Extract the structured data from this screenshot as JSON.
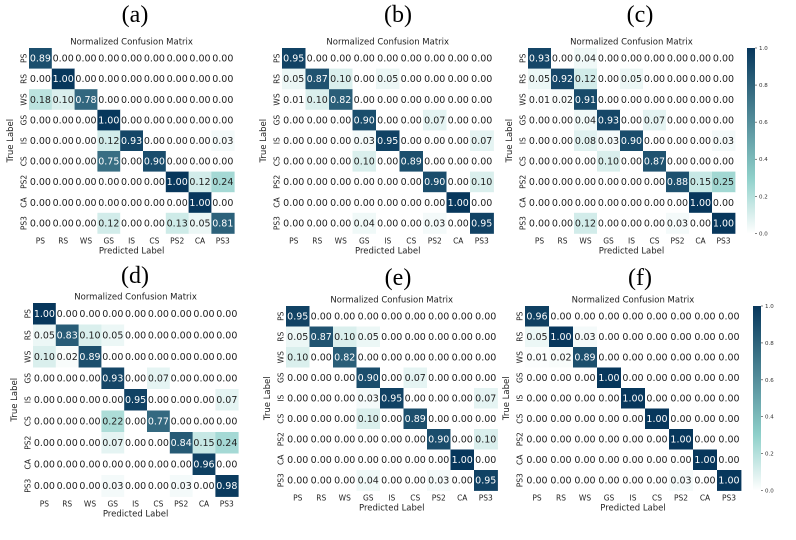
{
  "figure": {
    "panel_labels": [
      "(a)",
      "(b)",
      "(c)",
      "(d)",
      "(e)",
      "(f)"
    ]
  },
  "colorscale": {
    "low": "#ffffff",
    "mid": "#8fd0ca",
    "high": "#07375c",
    "text_dark": "#222222",
    "text_light": "#ffffff",
    "ticks": [
      "0.0",
      "0.2",
      "0.4",
      "0.6",
      "0.8",
      "1.0"
    ],
    "tick_values": [
      0.0,
      0.2,
      0.4,
      0.6,
      0.8,
      1.0
    ]
  },
  "chart_data": [
    {
      "type": "heatmap",
      "panel": "(a)",
      "title": "Normalized Confusion Matrix",
      "xlabel": "Predicted Label",
      "ylabel": "True Label",
      "x_categories": [
        "PS",
        "RS",
        "WS",
        "GS",
        "IS",
        "CS",
        "PS2",
        "CA",
        "PS3"
      ],
      "y_categories": [
        "PS",
        "RS",
        "WS",
        "GS",
        "IS",
        "CS",
        "PS2",
        "CA",
        "PS3"
      ],
      "colorbar": false,
      "matrix": [
        [
          0.89,
          0.0,
          0.0,
          0.0,
          0.0,
          0.0,
          0.0,
          0.0,
          0.0
        ],
        [
          0.0,
          1.0,
          0.0,
          0.0,
          0.0,
          0.0,
          0.0,
          0.0,
          0.0
        ],
        [
          0.18,
          0.1,
          0.78,
          0.0,
          0.0,
          0.0,
          0.0,
          0.0,
          0.0
        ],
        [
          0.0,
          0.0,
          0.0,
          1.0,
          0.0,
          0.0,
          0.0,
          0.0,
          0.0
        ],
        [
          0.0,
          0.0,
          0.0,
          0.12,
          0.93,
          0.0,
          0.0,
          0.0,
          0.03
        ],
        [
          0.0,
          0.0,
          0.0,
          0.75,
          0.0,
          0.9,
          0.0,
          0.0,
          0.0
        ],
        [
          0.0,
          0.0,
          0.0,
          0.0,
          0.0,
          0.0,
          1.0,
          0.12,
          0.24
        ],
        [
          0.0,
          0.0,
          0.0,
          0.0,
          0.0,
          0.0,
          0.0,
          1.0,
          0.0
        ],
        [
          0.0,
          0.0,
          0.0,
          0.12,
          0.0,
          0.0,
          0.13,
          0.05,
          0.81
        ]
      ]
    },
    {
      "type": "heatmap",
      "panel": "(b)",
      "title": "Normalized Confusion Matrix",
      "xlabel": "Predicted Label",
      "ylabel": "True Label",
      "x_categories": [
        "PS",
        "RS",
        "WS",
        "GS",
        "IS",
        "CS",
        "PS2",
        "CA",
        "PS3"
      ],
      "y_categories": [
        "PS",
        "RS",
        "WS",
        "GS",
        "IS",
        "CS",
        "PS2",
        "CA",
        "PS3"
      ],
      "colorbar": false,
      "matrix": [
        [
          0.95,
          0.0,
          0.0,
          0.0,
          0.0,
          0.0,
          0.0,
          0.0,
          0.0
        ],
        [
          0.05,
          0.87,
          0.1,
          0.0,
          0.05,
          0.0,
          0.0,
          0.0,
          0.0
        ],
        [
          0.01,
          0.1,
          0.82,
          0.0,
          0.0,
          0.0,
          0.0,
          0.0,
          0.0
        ],
        [
          0.0,
          0.0,
          0.0,
          0.9,
          0.0,
          0.0,
          0.07,
          0.0,
          0.0
        ],
        [
          0.0,
          0.0,
          0.0,
          0.03,
          0.95,
          0.0,
          0.0,
          0.0,
          0.07
        ],
        [
          0.0,
          0.0,
          0.0,
          0.1,
          0.0,
          0.89,
          0.0,
          0.0,
          0.0
        ],
        [
          0.0,
          0.0,
          0.0,
          0.0,
          0.0,
          0.0,
          0.9,
          0.0,
          0.1
        ],
        [
          0.0,
          0.0,
          0.0,
          0.0,
          0.0,
          0.0,
          0.0,
          1.0,
          0.0
        ],
        [
          0.0,
          0.0,
          0.0,
          0.04,
          0.0,
          0.0,
          0.03,
          0.0,
          0.95
        ]
      ]
    },
    {
      "type": "heatmap",
      "panel": "(c)",
      "title": "Normalized Confusion Matrix",
      "xlabel": "Predicted Label",
      "ylabel": "True Label",
      "x_categories": [
        "PS",
        "RS",
        "WS",
        "GS",
        "IS",
        "CS",
        "PS2",
        "CA",
        "PS3"
      ],
      "y_categories": [
        "PS",
        "RS",
        "WS",
        "GS",
        "IS",
        "CS",
        "PS2",
        "CA",
        "PS3"
      ],
      "colorbar": true,
      "matrix": [
        [
          0.93,
          0.0,
          0.04,
          0.0,
          0.0,
          0.0,
          0.0,
          0.0,
          0.0
        ],
        [
          0.05,
          0.92,
          0.12,
          0.0,
          0.05,
          0.0,
          0.0,
          0.0,
          0.0
        ],
        [
          0.01,
          0.02,
          0.91,
          0.0,
          0.0,
          0.0,
          0.0,
          0.0,
          0.0
        ],
        [
          0.0,
          0.0,
          0.04,
          0.93,
          0.0,
          0.07,
          0.0,
          0.0,
          0.0
        ],
        [
          0.0,
          0.0,
          0.08,
          0.03,
          0.9,
          0.0,
          0.0,
          0.0,
          0.03
        ],
        [
          0.0,
          0.0,
          0.0,
          0.1,
          0.0,
          0.87,
          0.0,
          0.0,
          0.0
        ],
        [
          0.0,
          0.0,
          0.0,
          0.0,
          0.0,
          0.0,
          0.88,
          0.15,
          0.25
        ],
        [
          0.0,
          0.0,
          0.0,
          0.0,
          0.0,
          0.0,
          0.0,
          1.0,
          0.0
        ],
        [
          0.0,
          0.0,
          0.12,
          0.0,
          0.0,
          0.0,
          0.03,
          0.0,
          1.0
        ]
      ]
    },
    {
      "type": "heatmap",
      "panel": "(d)",
      "title": "Normalized Confusion Matrix",
      "xlabel": "Predicted Label",
      "ylabel": "True Label",
      "x_categories": [
        "PS",
        "RS",
        "WS",
        "GS",
        "IS",
        "CS",
        "PS2",
        "CA",
        "PS3"
      ],
      "y_categories": [
        "PS",
        "RS",
        "WS",
        "GS",
        "IS",
        "CS",
        "PS2",
        "CA",
        "PS3"
      ],
      "colorbar": false,
      "matrix": [
        [
          1.0,
          0.0,
          0.0,
          0.0,
          0.0,
          0.0,
          0.0,
          0.0,
          0.0
        ],
        [
          0.05,
          0.83,
          0.1,
          0.05,
          0.0,
          0.0,
          0.0,
          0.0,
          0.0
        ],
        [
          0.1,
          0.02,
          0.89,
          0.0,
          0.0,
          0.0,
          0.0,
          0.0,
          0.0
        ],
        [
          0.0,
          0.0,
          0.0,
          0.93,
          0.0,
          0.07,
          0.0,
          0.0,
          0.0
        ],
        [
          0.0,
          0.0,
          0.0,
          0.0,
          0.95,
          0.0,
          0.0,
          0.0,
          0.07
        ],
        [
          0.0,
          0.0,
          0.0,
          0.22,
          0.0,
          0.77,
          0.0,
          0.0,
          0.0
        ],
        [
          0.0,
          0.0,
          0.0,
          0.07,
          0.0,
          0.0,
          0.84,
          0.15,
          0.24
        ],
        [
          0.0,
          0.0,
          0.0,
          0.0,
          0.0,
          0.0,
          0.0,
          0.96,
          0.0
        ],
        [
          0.0,
          0.0,
          0.0,
          0.03,
          0.0,
          0.0,
          0.03,
          0.0,
          0.98
        ]
      ]
    },
    {
      "type": "heatmap",
      "panel": "(e)",
      "title": "Normalized Confusion Matrix",
      "xlabel": "Predicted Label",
      "ylabel": "True Label",
      "x_categories": [
        "PS",
        "RS",
        "WS",
        "GS",
        "IS",
        "CS",
        "PS2",
        "CA",
        "PS3"
      ],
      "y_categories": [
        "PS",
        "RS",
        "WS",
        "GS",
        "IS",
        "CS",
        "PS2",
        "CA",
        "PS3"
      ],
      "colorbar": false,
      "matrix": [
        [
          0.95,
          0.0,
          0.0,
          0.0,
          0.0,
          0.0,
          0.0,
          0.0,
          0.0
        ],
        [
          0.05,
          0.87,
          0.1,
          0.05,
          0.0,
          0.0,
          0.0,
          0.0,
          0.0
        ],
        [
          0.1,
          0.0,
          0.82,
          0.0,
          0.0,
          0.0,
          0.0,
          0.0,
          0.0
        ],
        [
          0.0,
          0.0,
          0.0,
          0.9,
          0.0,
          0.07,
          0.0,
          0.0,
          0.0
        ],
        [
          0.0,
          0.0,
          0.0,
          0.03,
          0.95,
          0.0,
          0.0,
          0.0,
          0.07
        ],
        [
          0.0,
          0.0,
          0.0,
          0.1,
          0.0,
          0.89,
          0.0,
          0.0,
          0.0
        ],
        [
          0.0,
          0.0,
          0.0,
          0.0,
          0.0,
          0.0,
          0.9,
          0.0,
          0.1
        ],
        [
          0.0,
          0.0,
          0.0,
          0.0,
          0.0,
          0.0,
          0.0,
          1.0,
          0.0
        ],
        [
          0.0,
          0.0,
          0.0,
          0.04,
          0.0,
          0.0,
          0.03,
          0.0,
          0.95
        ]
      ]
    },
    {
      "type": "heatmap",
      "panel": "(f)",
      "title": "Normalized Confusion Matrix",
      "xlabel": "Predicted Label",
      "ylabel": "True Label",
      "x_categories": [
        "PS",
        "RS",
        "WS",
        "GS",
        "IS",
        "CS",
        "PS2",
        "CA",
        "PS3"
      ],
      "y_categories": [
        "PS",
        "RS",
        "WS",
        "GS",
        "IS",
        "CS",
        "PS2",
        "CA",
        "PS3"
      ],
      "colorbar": true,
      "matrix": [
        [
          0.96,
          0.0,
          0.0,
          0.0,
          0.0,
          0.0,
          0.0,
          0.0,
          0.0
        ],
        [
          0.05,
          1.0,
          0.03,
          0.0,
          0.0,
          0.0,
          0.0,
          0.0,
          0.0
        ],
        [
          0.01,
          0.02,
          0.89,
          0.0,
          0.0,
          0.0,
          0.0,
          0.0,
          0.0
        ],
        [
          0.0,
          0.0,
          0.0,
          1.0,
          0.0,
          0.0,
          0.0,
          0.0,
          0.0
        ],
        [
          0.0,
          0.0,
          0.0,
          0.0,
          1.0,
          0.0,
          0.0,
          0.0,
          0.0
        ],
        [
          0.0,
          0.0,
          0.0,
          0.0,
          0.0,
          1.0,
          0.0,
          0.0,
          0.0
        ],
        [
          0.0,
          0.0,
          0.0,
          0.0,
          0.0,
          0.0,
          1.0,
          0.0,
          0.0
        ],
        [
          0.0,
          0.0,
          0.0,
          0.0,
          0.0,
          0.0,
          0.0,
          1.0,
          0.0
        ],
        [
          0.0,
          0.0,
          0.0,
          0.0,
          0.0,
          0.0,
          0.03,
          0.0,
          1.0
        ]
      ]
    }
  ]
}
